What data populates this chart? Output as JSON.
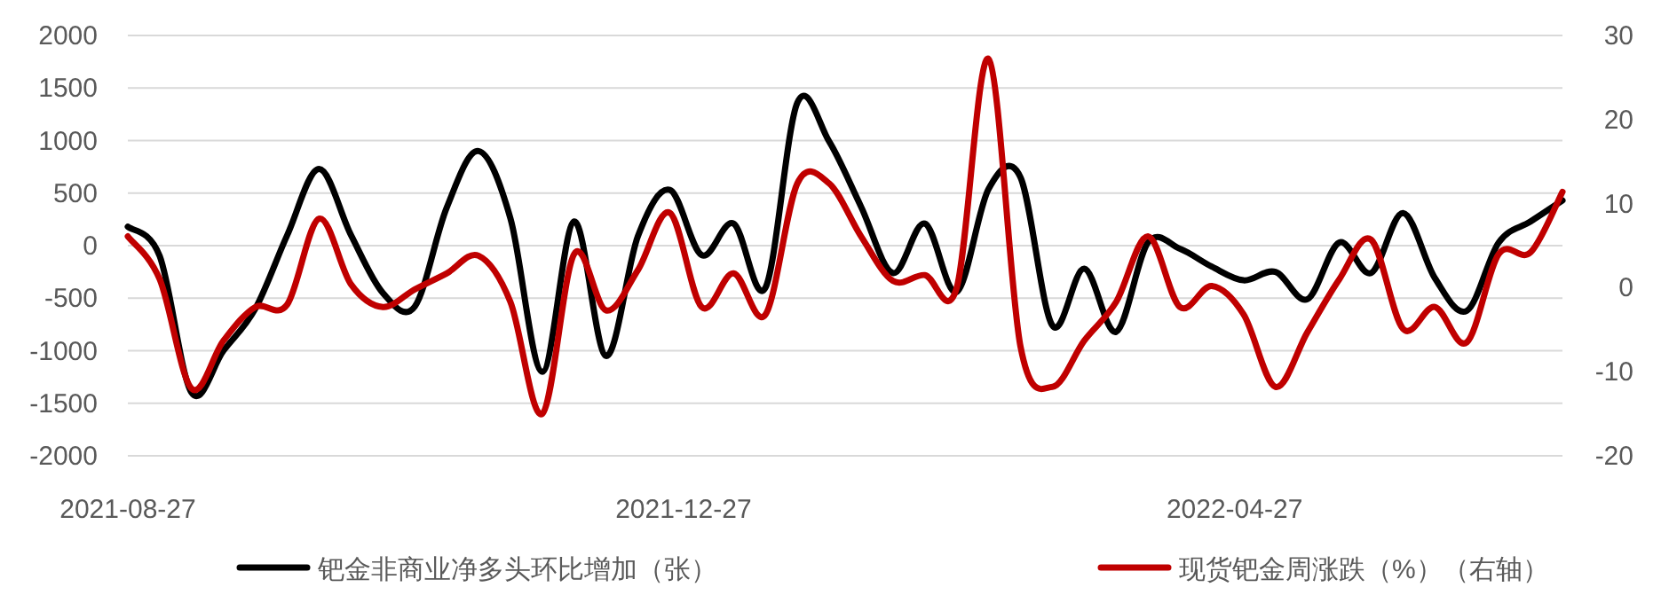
{
  "chart_data": {
    "type": "line",
    "x": [
      "2021-08-27",
      "2021-09-03",
      "2021-09-10",
      "2021-09-17",
      "2021-09-24",
      "2021-10-01",
      "2021-10-08",
      "2021-10-15",
      "2021-10-22",
      "2021-10-29",
      "2021-11-05",
      "2021-11-12",
      "2021-11-19",
      "2021-11-26",
      "2021-12-03",
      "2021-12-10",
      "2021-12-17",
      "2021-12-24",
      "2021-12-31",
      "2022-01-07",
      "2022-01-14",
      "2022-01-21",
      "2022-01-28",
      "2022-02-04",
      "2022-02-11",
      "2022-02-18",
      "2022-02-25",
      "2022-03-04",
      "2022-03-11",
      "2022-03-18",
      "2022-03-25",
      "2022-04-01",
      "2022-04-08",
      "2022-04-15",
      "2022-04-22",
      "2022-04-29",
      "2022-05-06",
      "2022-05-13",
      "2022-05-20",
      "2022-05-27",
      "2022-06-03",
      "2022-06-10",
      "2022-06-17",
      "2022-06-24",
      "2022-07-01",
      "2022-07-08"
    ],
    "series": [
      {
        "name": "钯金非商业净多头环比增加（张）",
        "color": "#000000",
        "values": [
          180,
          -100,
          -1400,
          -1000,
          -600,
          100,
          730,
          100,
          -450,
          -580,
          360,
          900,
          260,
          -1200,
          230,
          -1050,
          90,
          530,
          -90,
          210,
          -400,
          1360,
          990,
          370,
          -260,
          210,
          -440,
          540,
          650,
          -760,
          -220,
          -820,
          30,
          -30,
          -200,
          -330,
          -250,
          -510,
          30,
          -260,
          310,
          -310,
          -620,
          30,
          230,
          430
        ]
      },
      {
        "name": "现货钯金周涨跌（%）（右轴）",
        "color": "#c00000",
        "axis": "y2",
        "values": [
          6.1,
          1,
          -12,
          -6.3,
          -2.3,
          -2,
          8.2,
          0.4,
          -2.3,
          -0.2,
          1.7,
          3.8,
          -1.7,
          -15,
          4,
          -2.7,
          2.1,
          8.9,
          -2.3,
          1.7,
          -3.2,
          12.4,
          12.4,
          6.1,
          0.8,
          1.5,
          0,
          27.2,
          -7,
          -11.8,
          -6.3,
          -1.7,
          6.1,
          -2.3,
          0.2,
          -3.2,
          -11.8,
          -5.3,
          1,
          5.7,
          -4.9,
          -2.3,
          -6.5,
          4,
          4.2,
          11.4
        ]
      }
    ],
    "xlim": [
      "2021-08-27",
      "2022-07-08"
    ],
    "xticks": [
      "2021-08-27",
      "2021-12-27",
      "2022-04-27"
    ],
    "ylim": [
      -2000,
      2000
    ],
    "yticks": [
      -2000,
      -1500,
      -1000,
      -500,
      0,
      500,
      1000,
      1500,
      2000
    ],
    "y2lim": [
      -20,
      30
    ],
    "y2ticks": [
      -20,
      -10,
      0,
      10,
      20,
      30
    ],
    "grid": "y",
    "legend": "bottom",
    "marker": "none",
    "line_style": "solid"
  }
}
